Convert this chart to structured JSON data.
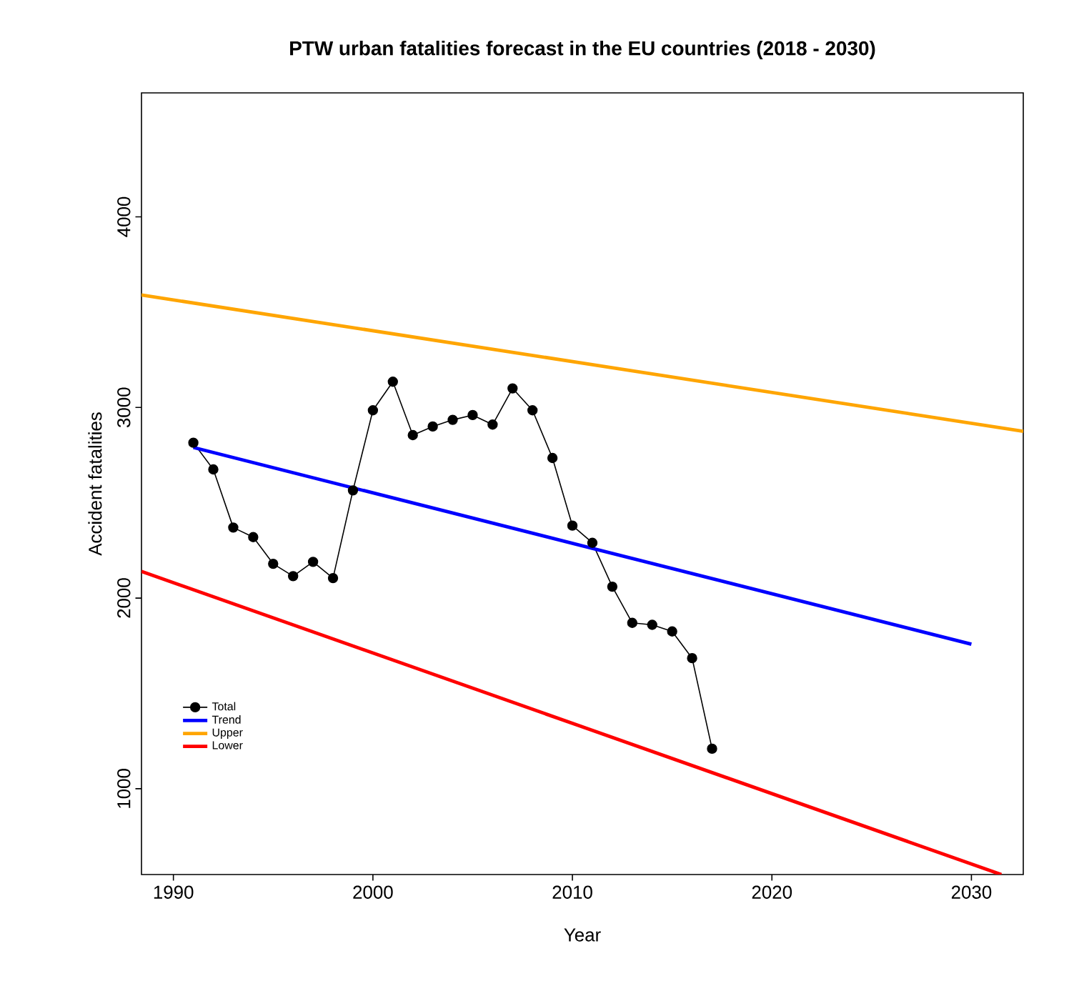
{
  "chart_data": {
    "type": "line",
    "title": "PTW urban fatalities forecast in the EU countries (2018 - 2030)",
    "xlabel": "Year",
    "ylabel": "Accident fatalities",
    "xlim": [
      1988.4,
      2032.6
    ],
    "ylim": [
      550,
      4650
    ],
    "xticks": [
      1990,
      2000,
      2010,
      2020,
      2030
    ],
    "yticks": [
      1000,
      2000,
      3000,
      4000
    ],
    "grid": false,
    "legend": "bottom left",
    "series": [
      {
        "name": "Total",
        "color": "#000000",
        "marker": "circle",
        "x": [
          1991,
          1992,
          1993,
          1994,
          1995,
          1996,
          1997,
          1998,
          1999,
          2000,
          2001,
          2002,
          2003,
          2004,
          2005,
          2006,
          2007,
          2008,
          2009,
          2010,
          2011,
          2012,
          2013,
          2014,
          2015,
          2016,
          2017
        ],
        "values": [
          2815,
          2675,
          2370,
          2320,
          2180,
          2115,
          2190,
          2105,
          2565,
          2985,
          3135,
          2855,
          2900,
          2935,
          2960,
          2910,
          3100,
          2985,
          2735,
          2380,
          2290,
          2060,
          1870,
          1860,
          1825,
          1685,
          1210
        ]
      },
      {
        "name": "Trend",
        "color": "#0000ff",
        "marker": "none",
        "x": [
          1991,
          2030
        ],
        "values": [
          2790,
          1758
        ]
      },
      {
        "name": "Upper",
        "color": "#ffa500",
        "marker": "none",
        "x": [
          1988.4,
          2032.6
        ],
        "values": [
          3590,
          2875
        ]
      },
      {
        "name": "Lower",
        "color": "#ff0000",
        "marker": "none",
        "x": [
          1988.4,
          2031.5
        ],
        "values": [
          2140,
          550
        ]
      }
    ]
  }
}
